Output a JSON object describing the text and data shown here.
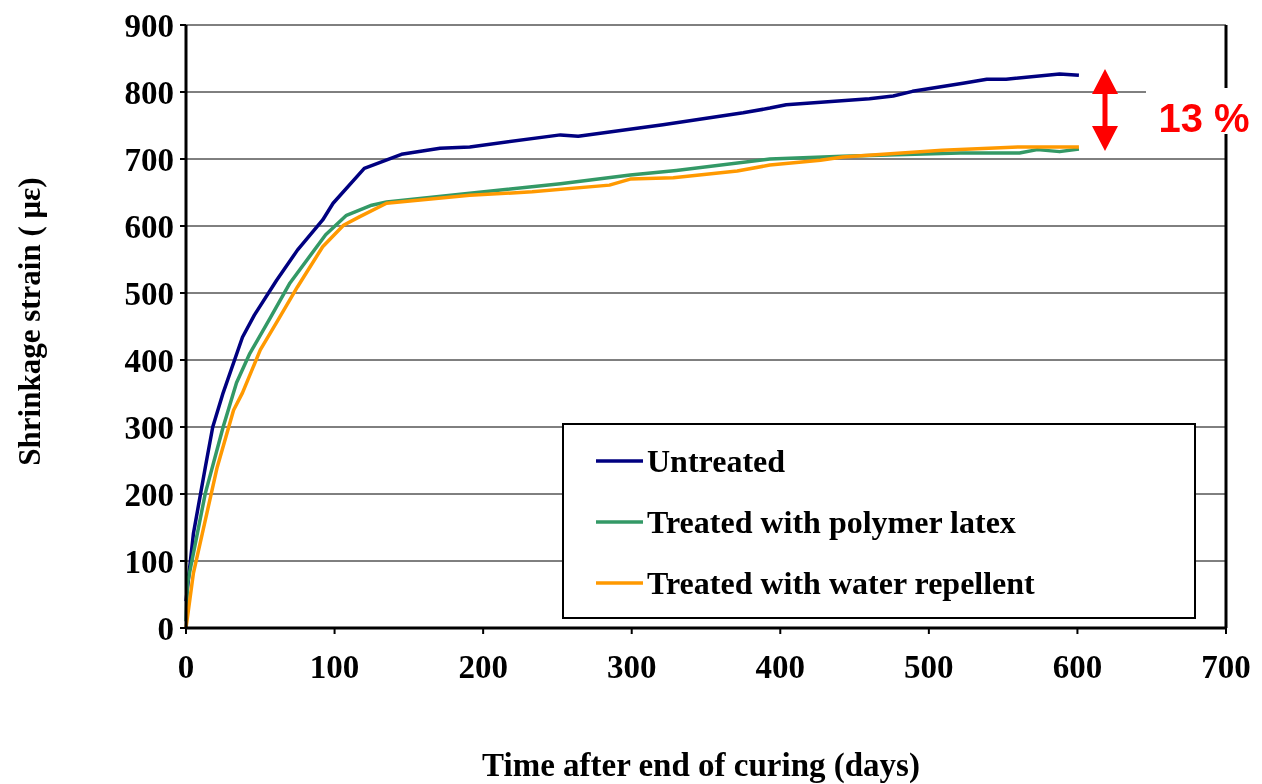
{
  "chart_data": {
    "type": "line",
    "xlabel": "Time after end of curing (days)",
    "ylabel": "Shrinkage strain ( με)",
    "xlim": [
      0,
      700
    ],
    "xticks": [
      0,
      100,
      200,
      300,
      400,
      500,
      600,
      700
    ],
    "ylim": [
      0,
      900
    ],
    "yticks": [
      0,
      100,
      200,
      300,
      400,
      500,
      600,
      700,
      800,
      900
    ],
    "grid": "y",
    "legend": "bottom right",
    "marker": "none",
    "line_style": "solid",
    "annotations": [
      "13 %"
    ],
    "series": [
      {
        "name": "Untreated",
        "color": "#000080",
        "x": [
          0,
          5,
          13,
          18,
          25,
          38,
          46,
          61,
          75,
          92,
          99,
          120,
          145,
          171,
          191,
          252,
          264,
          321,
          375,
          393,
          404,
          460,
          476,
          489,
          523,
          539,
          552,
          588,
          601
        ],
        "values": [
          40,
          141,
          240,
          300,
          351,
          434,
          467,
          519,
          564,
          609,
          634,
          686,
          707,
          716,
          718,
          736,
          734,
          751,
          769,
          776,
          781,
          790,
          794,
          801,
          813,
          819,
          819,
          827,
          825
        ]
      },
      {
        "name": "Treated with polymer latex",
        "color": "#339966",
        "x": [
          0,
          1,
          13,
          25,
          34,
          43,
          57,
          70,
          94,
          108,
          125,
          135,
          191,
          252,
          299,
          330,
          393,
          442,
          521,
          561,
          573,
          588,
          601
        ],
        "values": [
          10,
          67,
          201,
          300,
          366,
          410,
          464,
          515,
          587,
          616,
          631,
          636,
          649,
          663,
          676,
          683,
          700,
          704,
          709,
          709,
          714,
          711,
          715
        ]
      },
      {
        "name": "Treated with water repellent",
        "color": "#ff9900",
        "x": [
          0,
          5,
          21,
          32,
          38,
          50,
          62,
          75,
          92,
          106,
          117,
          135,
          191,
          233,
          285,
          299,
          328,
          371,
          393,
          427,
          442,
          509,
          561,
          601
        ],
        "values": [
          0,
          82,
          240,
          325,
          351,
          415,
          460,
          509,
          569,
          601,
          614,
          634,
          646,
          651,
          661,
          670,
          672,
          682,
          691,
          698,
          703,
          713,
          718,
          718
        ]
      }
    ]
  }
}
